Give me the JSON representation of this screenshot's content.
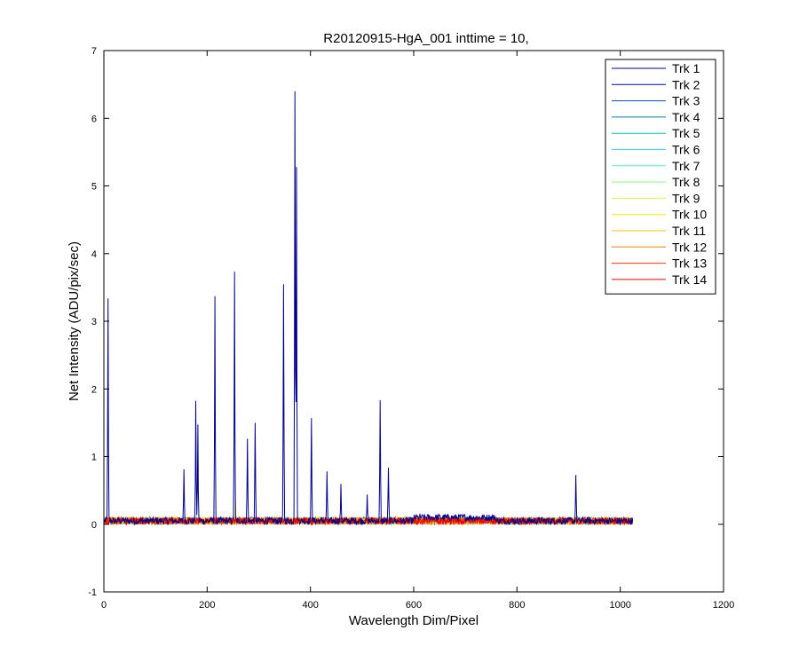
{
  "chart_data": {
    "type": "line",
    "title": "R20120915-HgA_001 inttime = 10,",
    "xlabel": "Wavelength Dim/Pixel",
    "ylabel": "Net Intensity (ADU/pix/sec)",
    "xlim": [
      0,
      1200
    ],
    "ylim": [
      -1,
      7
    ],
    "xticks": [
      0,
      200,
      400,
      600,
      800,
      1000,
      1200
    ],
    "yticks": [
      -1,
      0,
      1,
      2,
      3,
      4,
      5,
      6,
      7
    ],
    "grid": false,
    "legend_location": "top-right",
    "n_points": 1024,
    "baseline": 0.05,
    "noise_amplitude": 0.05,
    "series": [
      {
        "name": "Trk 1",
        "color": "#00008F",
        "peaks": [
          [
            8,
            3.3
          ],
          [
            155,
            0.85
          ],
          [
            178,
            1.85
          ],
          [
            182,
            1.45
          ],
          [
            215,
            3.38
          ],
          [
            253,
            3.75
          ],
          [
            278,
            1.25
          ],
          [
            293,
            1.47
          ],
          [
            348,
            3.52
          ],
          [
            370,
            6.42
          ],
          [
            373,
            5.28
          ],
          [
            402,
            1.6
          ],
          [
            432,
            0.75
          ],
          [
            459,
            0.55
          ],
          [
            510,
            0.4
          ],
          [
            535,
            1.82
          ],
          [
            551,
            0.82
          ],
          [
            914,
            0.75
          ]
        ]
      },
      {
        "name": "Trk 2",
        "color": "#0000BF",
        "peaks": []
      },
      {
        "name": "Trk 3",
        "color": "#0050C0",
        "peaks": []
      },
      {
        "name": "Trk 4",
        "color": "#0080A0",
        "peaks": []
      },
      {
        "name": "Trk 5",
        "color": "#00BFBF",
        "peaks": []
      },
      {
        "name": "Trk 6",
        "color": "#30DFDF",
        "peaks": []
      },
      {
        "name": "Trk 7",
        "color": "#50EFD0",
        "peaks": []
      },
      {
        "name": "Trk 8",
        "color": "#80FF80",
        "peaks": []
      },
      {
        "name": "Trk 9",
        "color": "#CFFF30",
        "peaks": []
      },
      {
        "name": "Trk 10",
        "color": "#EFEF00",
        "peaks": [
          [
            255,
            0.3
          ]
        ]
      },
      {
        "name": "Trk 11",
        "color": "#FFBF00",
        "peaks": []
      },
      {
        "name": "Trk 12",
        "color": "#FF8000",
        "peaks": []
      },
      {
        "name": "Trk 13",
        "color": "#FF3000",
        "peaks": []
      },
      {
        "name": "Trk 14",
        "color": "#EF0000",
        "peaks": []
      }
    ]
  }
}
